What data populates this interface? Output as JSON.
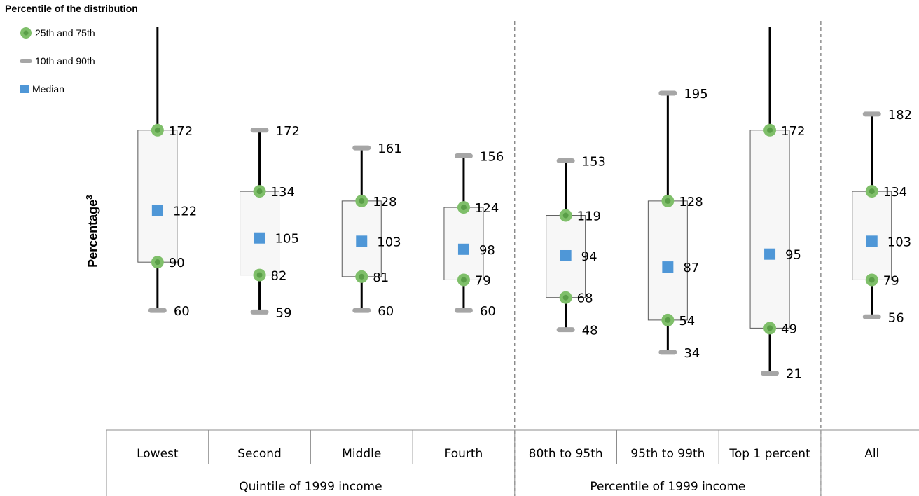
{
  "chart_data": {
    "type": "box",
    "title": "",
    "legend_title": "Percentile of the distribution",
    "legend": [
      {
        "symbol": "circle",
        "label": "25th and 75th",
        "color": "#7fbf6a"
      },
      {
        "symbol": "dash",
        "label": "10th and 90th",
        "color": "#a6a6a6"
      },
      {
        "symbol": "square",
        "label": "Median",
        "color": "#4f97d7"
      }
    ],
    "ylabel": "Percentage",
    "ylabel_sup": "3",
    "categories": [
      "Lowest",
      "Second",
      "Middle",
      "Fourth",
      "80th to 95th",
      "95th to 99th",
      "Top 1 percent",
      "All"
    ],
    "groups": [
      {
        "label": "Quintile of 1999 income",
        "categories": [
          "Lowest",
          "Second",
          "Middle",
          "Fourth"
        ]
      },
      {
        "label": "Percentile of 1999 income",
        "categories": [
          "80th to 95th",
          "95th to 99th",
          "Top 1 percent"
        ]
      },
      {
        "label": "",
        "categories": [
          "All"
        ]
      }
    ],
    "series": [
      {
        "name": "10th",
        "values": [
          60,
          59,
          60,
          60,
          48,
          34,
          21,
          56
        ]
      },
      {
        "name": "25th",
        "values": [
          90,
          82,
          81,
          79,
          68,
          54,
          49,
          79
        ]
      },
      {
        "name": "Median",
        "values": [
          122,
          105,
          103,
          98,
          94,
          87,
          95,
          103
        ]
      },
      {
        "name": "75th",
        "values": [
          172,
          134,
          128,
          124,
          119,
          128,
          172,
          134
        ]
      },
      {
        "name": "90th",
        "values": [
          null,
          172,
          161,
          156,
          153,
          195,
          null,
          182
        ]
      }
    ],
    "whisker_beyond_top": [
      true,
      false,
      false,
      false,
      false,
      false,
      true,
      false
    ],
    "colors": {
      "circle": "#7fbf6a",
      "circle_inner": "#5a9e48",
      "dash": "#a6a6a6",
      "median": "#4f97d7",
      "whisker": "#000000",
      "box_fill": "#f7f7f7",
      "box_stroke": "#595959",
      "divider": "#595959"
    }
  }
}
